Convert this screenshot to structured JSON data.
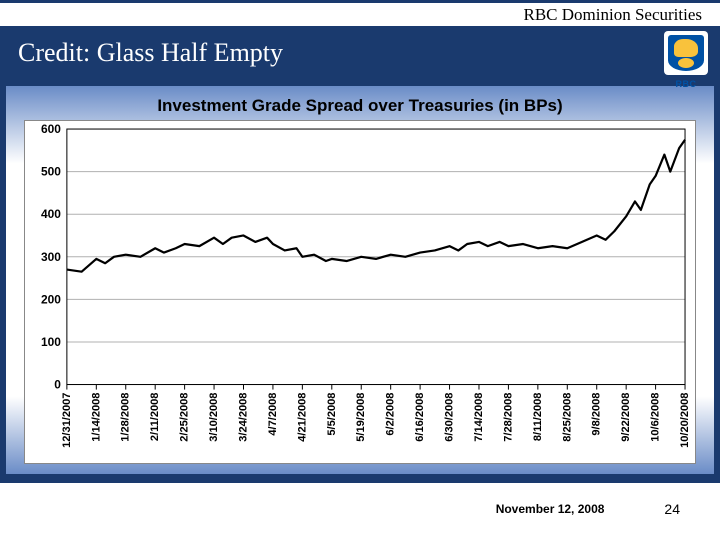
{
  "header": {
    "company": "RBC Dominion Securities"
  },
  "titleBar": {
    "title": "Credit: Glass Half Empty",
    "logoLabel": "RBC"
  },
  "chart": {
    "type": "line",
    "title": "Investment Grade Spread over Treasuries (in BPs)",
    "title_fontsize": 17,
    "background_color": "#ffffff",
    "grid_color": "#b0b0b0",
    "line_color": "#000000",
    "line_width": 2.2,
    "ylim": [
      0,
      600
    ],
    "ytick_step": 100,
    "yticks": [
      "0",
      "100",
      "200",
      "300",
      "400",
      "500",
      "600"
    ],
    "y_font_weight": "bold",
    "xlabels": [
      "12/31/2007",
      "1/14/2008",
      "1/28/2008",
      "2/11/2008",
      "2/25/2008",
      "3/10/2008",
      "3/24/2008",
      "4/7/2008",
      "4/21/2008",
      "5/5/2008",
      "5/19/2008",
      "6/2/2008",
      "6/16/2008",
      "6/30/2008",
      "7/14/2008",
      "7/28/2008",
      "8/11/2008",
      "8/25/2008",
      "9/8/2008",
      "9/22/2008",
      "10/6/2008",
      "10/20/2008"
    ],
    "series": [
      {
        "x": 0,
        "y": 270
      },
      {
        "x": 0.5,
        "y": 265
      },
      {
        "x": 1,
        "y": 295
      },
      {
        "x": 1.3,
        "y": 285
      },
      {
        "x": 1.6,
        "y": 300
      },
      {
        "x": 2,
        "y": 305
      },
      {
        "x": 2.5,
        "y": 300
      },
      {
        "x": 3,
        "y": 320
      },
      {
        "x": 3.3,
        "y": 310
      },
      {
        "x": 3.7,
        "y": 320
      },
      {
        "x": 4,
        "y": 330
      },
      {
        "x": 4.5,
        "y": 325
      },
      {
        "x": 5,
        "y": 345
      },
      {
        "x": 5.3,
        "y": 330
      },
      {
        "x": 5.6,
        "y": 345
      },
      {
        "x": 6,
        "y": 350
      },
      {
        "x": 6.4,
        "y": 335
      },
      {
        "x": 6.8,
        "y": 345
      },
      {
        "x": 7,
        "y": 330
      },
      {
        "x": 7.4,
        "y": 315
      },
      {
        "x": 7.8,
        "y": 320
      },
      {
        "x": 8,
        "y": 300
      },
      {
        "x": 8.4,
        "y": 305
      },
      {
        "x": 8.8,
        "y": 290
      },
      {
        "x": 9,
        "y": 295
      },
      {
        "x": 9.5,
        "y": 290
      },
      {
        "x": 10,
        "y": 300
      },
      {
        "x": 10.5,
        "y": 295
      },
      {
        "x": 11,
        "y": 305
      },
      {
        "x": 11.5,
        "y": 300
      },
      {
        "x": 12,
        "y": 310
      },
      {
        "x": 12.5,
        "y": 315
      },
      {
        "x": 13,
        "y": 325
      },
      {
        "x": 13.3,
        "y": 315
      },
      {
        "x": 13.6,
        "y": 330
      },
      {
        "x": 14,
        "y": 335
      },
      {
        "x": 14.3,
        "y": 325
      },
      {
        "x": 14.7,
        "y": 335
      },
      {
        "x": 15,
        "y": 325
      },
      {
        "x": 15.5,
        "y": 330
      },
      {
        "x": 16,
        "y": 320
      },
      {
        "x": 16.5,
        "y": 325
      },
      {
        "x": 17,
        "y": 320
      },
      {
        "x": 17.5,
        "y": 335
      },
      {
        "x": 18,
        "y": 350
      },
      {
        "x": 18.3,
        "y": 340
      },
      {
        "x": 18.6,
        "y": 360
      },
      {
        "x": 19,
        "y": 395
      },
      {
        "x": 19.3,
        "y": 430
      },
      {
        "x": 19.5,
        "y": 410
      },
      {
        "x": 19.8,
        "y": 470
      },
      {
        "x": 20,
        "y": 490
      },
      {
        "x": 20.3,
        "y": 540
      },
      {
        "x": 20.5,
        "y": 500
      },
      {
        "x": 20.8,
        "y": 555
      },
      {
        "x": 21,
        "y": 575
      }
    ]
  },
  "footer": {
    "date": "November 12, 2008",
    "page": "24"
  },
  "colors": {
    "brand_blue": "#1a3a6e",
    "gradient_blue": "#6a8cc7"
  }
}
